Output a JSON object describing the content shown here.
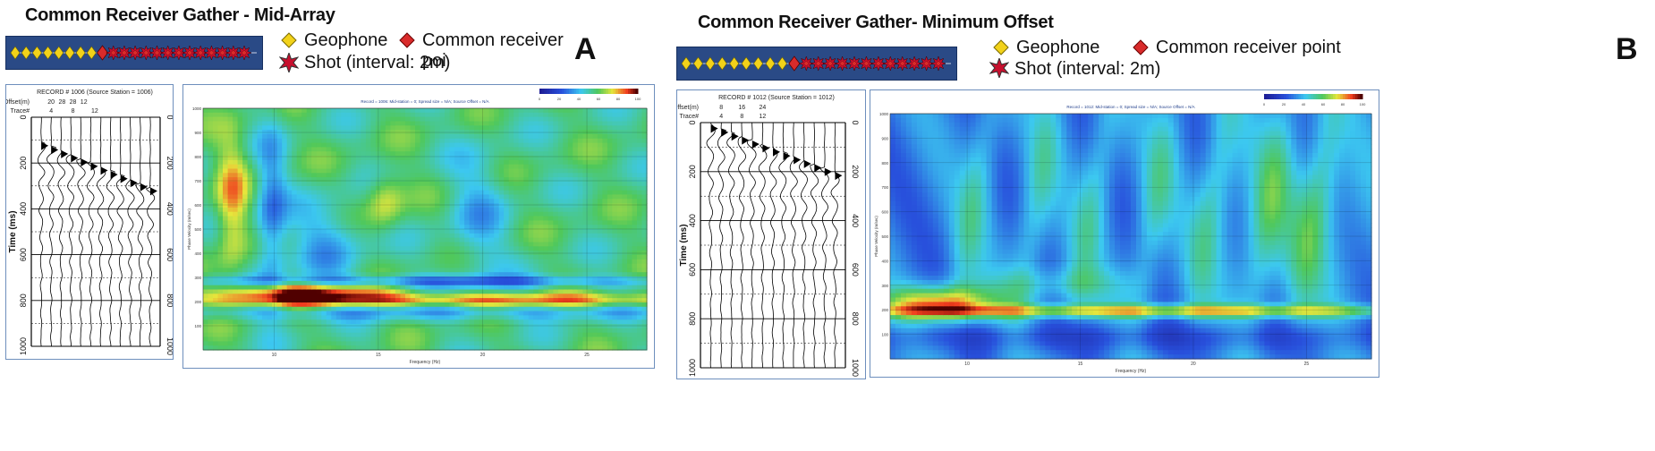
{
  "panelA": {
    "title": "Common Receiver Gather  - Mid-Array",
    "letter": "A",
    "legend": {
      "geophone": "Geophone",
      "receiver": "Common receiver poi",
      "shot": "Shot (interval: 2m)"
    },
    "array": {
      "geophones_left": 8,
      "receiver_index": 8,
      "shots": 13
    },
    "gather": {
      "record": "RECORD # 1006 (Source Station = 1006)",
      "offset_label": "Offset(m)",
      "offsets": [
        "20",
        "28",
        "28",
        "12"
      ],
      "trace_label": "Trace#",
      "traces": [
        "4",
        "8",
        "12"
      ],
      "time_label": "Time (ms)",
      "time_ticks": [
        "0",
        "200",
        "400",
        "600",
        "800",
        "1000"
      ],
      "right_ticks": [
        "0",
        "200",
        "400",
        "600",
        "800",
        "1000"
      ]
    },
    "dispersion": {
      "header": "Record = 1006: Mid-station = 0; Spread size = N/A; Source Offset = N/A",
      "ylabel": "Phase Velocity (m/sec)",
      "xlabel": "Frequency (Hz)",
      "yticks": [
        "1000",
        "900",
        "800",
        "700",
        "600",
        "500",
        "400",
        "300",
        "200",
        "100"
      ],
      "xticks": [
        "10",
        "15",
        "20",
        "25"
      ],
      "colorbar_ticks": [
        "0",
        "20",
        "40",
        "60",
        "80",
        "100"
      ]
    }
  },
  "panelB": {
    "title": "Common Receiver Gather- Minimum Offset",
    "letter": "B",
    "legend": {
      "geophone": "Geophone",
      "receiver": "Common receiver point",
      "shot": "Shot (interval: 2m)"
    },
    "array": {
      "geophones_left": 9,
      "receiver_index": 9,
      "shots": 12
    },
    "gather": {
      "record": "RECORD # 1012 (Source Station = 1012)",
      "offset_label": "Offset(m)",
      "offsets": [
        "8",
        "16",
        "24"
      ],
      "trace_label": "Trace#",
      "traces": [
        "4",
        "8",
        "12"
      ],
      "time_label": "Time (ms)",
      "time_ticks": [
        "0",
        "200",
        "400",
        "600",
        "800",
        "1000"
      ],
      "right_ticks": [
        "0",
        "200",
        "400",
        "600",
        "800",
        "1000"
      ]
    },
    "dispersion": {
      "header": "Record = 1012: Mid-station = 0; Spread size = N/A; Source Offset = N/A",
      "ylabel": "Phase Velocity (m/sec)",
      "xlabel": "Frequency (Hz)",
      "yticks": [
        "1000",
        "900",
        "800",
        "700",
        "600",
        "500",
        "400",
        "300",
        "200",
        "100"
      ],
      "xticks": [
        "10",
        "15",
        "20",
        "25"
      ],
      "colorbar_ticks": [
        "0",
        "20",
        "40",
        "60",
        "80",
        "100"
      ]
    }
  },
  "colors": {
    "geophone": "#f2d21a",
    "receiver": "#d92b2b",
    "shot": "#c8102e",
    "array_bg": "#2a4a86",
    "panel_border": "#6e8fbd"
  }
}
